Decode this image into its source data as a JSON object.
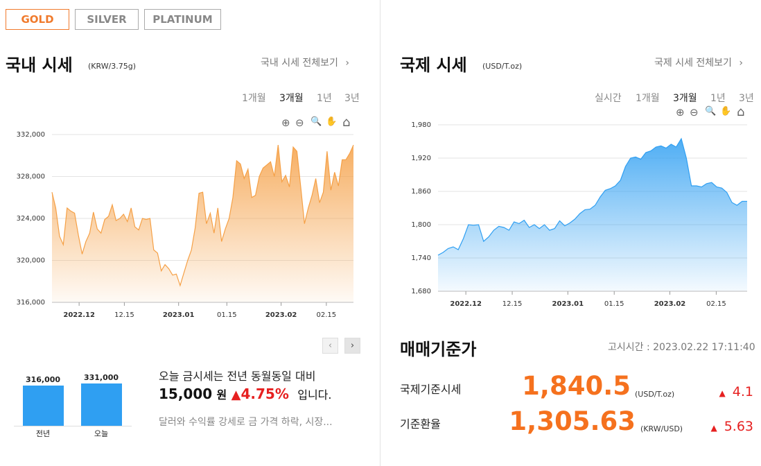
{
  "tabs": [
    {
      "label": "GOLD",
      "active": true
    },
    {
      "label": "SILVER",
      "active": false
    },
    {
      "label": "PLATINUM",
      "active": false
    }
  ],
  "domestic": {
    "title": "국내 시세",
    "unit": "(KRW/3.75g)",
    "link": "국내 시세 전체보기",
    "periods": [
      "1개월",
      "3개월",
      "1년",
      "3년"
    ],
    "active_period": "3개월"
  },
  "intl": {
    "title": "국제 시세",
    "unit": "(USD/T.oz)",
    "link": "국제 시세 전체보기",
    "periods": [
      "실시간",
      "1개월",
      "3개월",
      "1년",
      "3년"
    ],
    "active_period": "3개월"
  },
  "tools": {
    "zoom_in": "⊕",
    "zoom_out": "⊖",
    "zoom_select": "🔍",
    "pan": "✋",
    "home": "⌂"
  },
  "icons": {
    "chevron": "›",
    "prev": "‹",
    "next": "›",
    "triangle": "▲"
  },
  "colors": {
    "accent": "#f07a2c",
    "domestic_line": "#f5a046",
    "intl_line": "#2f9ff2",
    "up": "#e62020",
    "bar": "#2f9ff2"
  },
  "chart_data": [
    {
      "type": "area",
      "ylim": [
        316000,
        332000
      ],
      "yticks": [
        316000,
        320000,
        324000,
        328000,
        332000
      ],
      "ytick_labels": [
        "316,000",
        "320,000",
        "324,000",
        "328,000",
        "332,000"
      ],
      "xticks": [
        {
          "label": "2022.12",
          "bold": true,
          "pos": 9
        },
        {
          "label": "12.15",
          "bold": false,
          "pos": 24
        },
        {
          "label": "2023.01",
          "bold": true,
          "pos": 42
        },
        {
          "label": "01.15",
          "bold": false,
          "pos": 58
        },
        {
          "label": "2023.02",
          "bold": true,
          "pos": 76
        },
        {
          "label": "02.15",
          "bold": false,
          "pos": 91
        }
      ],
      "values": [
        326500,
        325000,
        322300,
        321500,
        325000,
        324700,
        324500,
        322400,
        320600,
        321800,
        322600,
        324600,
        323000,
        322600,
        323900,
        324200,
        325300,
        323800,
        324000,
        324400,
        323700,
        325000,
        323200,
        322900,
        324000,
        323900,
        324000,
        321000,
        320700,
        319000,
        319600,
        319200,
        318600,
        318700,
        317600,
        318800,
        320000,
        321000,
        323100,
        326400,
        326500,
        323500,
        324500,
        322600,
        325000,
        321800,
        323000,
        324000,
        326000,
        329500,
        329200,
        327800,
        328700,
        326000,
        326200,
        328000,
        328800,
        329100,
        329400,
        328000,
        331000,
        327500,
        328100,
        327000,
        330800,
        330400,
        327000,
        323500,
        325000,
        326200,
        327800,
        325500,
        326500,
        330400,
        326700,
        328400,
        327100,
        329600,
        329600,
        330200,
        331000
      ]
    },
    {
      "type": "area",
      "ylim": [
        1680,
        1980
      ],
      "yticks": [
        1680,
        1740,
        1800,
        1860,
        1920,
        1980
      ],
      "ytick_labels": [
        "1,680",
        "1,740",
        "1,800",
        "1,860",
        "1,920",
        "1,980"
      ],
      "xticks": [
        {
          "label": "2022.12",
          "bold": true,
          "pos": 9
        },
        {
          "label": "12.15",
          "bold": false,
          "pos": 24
        },
        {
          "label": "2023.01",
          "bold": true,
          "pos": 42
        },
        {
          "label": "01.15",
          "bold": false,
          "pos": 57
        },
        {
          "label": "2023.02",
          "bold": true,
          "pos": 75
        },
        {
          "label": "02.15",
          "bold": false,
          "pos": 90
        }
      ],
      "values": [
        1745,
        1750,
        1757,
        1760,
        1755,
        1775,
        1800,
        1799,
        1800,
        1770,
        1778,
        1790,
        1797,
        1795,
        1790,
        1805,
        1802,
        1808,
        1795,
        1800,
        1793,
        1800,
        1790,
        1793,
        1807,
        1798,
        1803,
        1810,
        1820,
        1827,
        1828,
        1835,
        1850,
        1862,
        1865,
        1870,
        1880,
        1905,
        1920,
        1922,
        1918,
        1930,
        1933,
        1940,
        1942,
        1938,
        1945,
        1940,
        1955,
        1920,
        1870,
        1870,
        1868,
        1874,
        1876,
        1868,
        1866,
        1858,
        1840,
        1835,
        1842,
        1842
      ]
    },
    {
      "type": "bar",
      "categories": [
        "전년",
        "오늘"
      ],
      "values": [
        316000,
        331000
      ],
      "value_labels": [
        "316,000",
        "331,000"
      ]
    }
  ],
  "summary": {
    "line1": "오늘 금시세는 전년 동월동일 대비",
    "amount": "15,000",
    "won": "원",
    "pct": "4.75%",
    "suffix": "입니다.",
    "news": "달러와 수익률 강세로 금 가격 하락, 시장..."
  },
  "rates": {
    "title": "매매기준가",
    "time_label": "고시시간 : 2023.02.22 17:11:40",
    "items": [
      {
        "label": "국제기준시세",
        "value": "1,840.5",
        "unit": "(USD/T.oz)",
        "change": "4.1"
      },
      {
        "label": "기준환율",
        "value": "1,305.63",
        "unit": "(KRW/USD)",
        "change": "5.63"
      }
    ]
  }
}
